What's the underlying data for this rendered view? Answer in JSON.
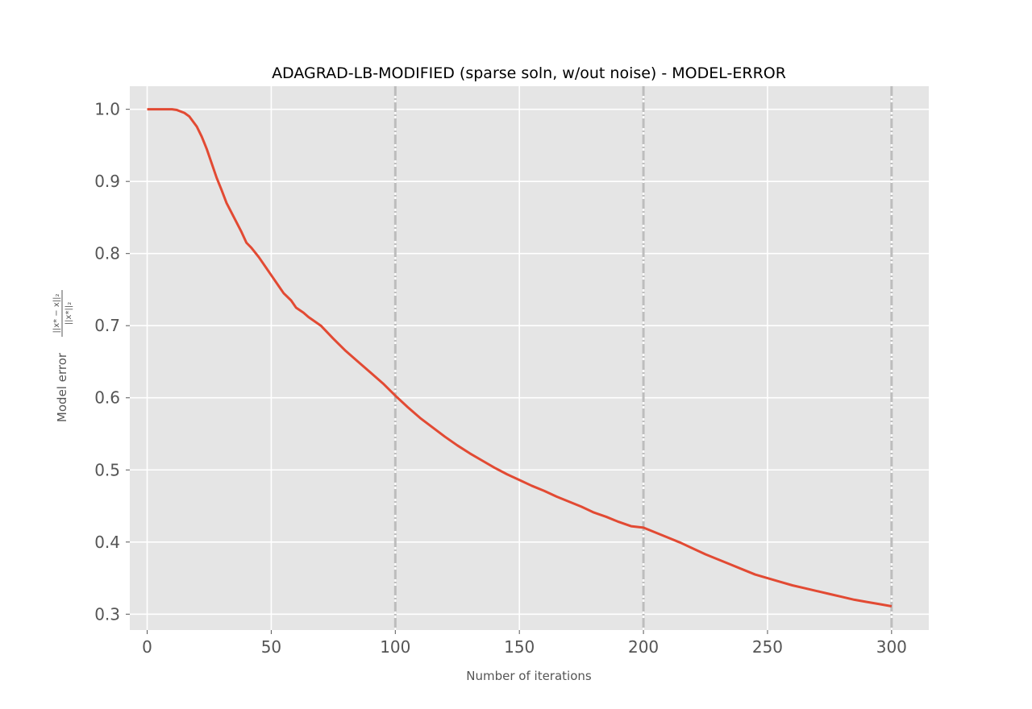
{
  "chart_data": {
    "type": "line",
    "title": "ADAGRAD-LB-MODIFIED (sparse soln, w/out noise) - MODEL-ERROR",
    "xlabel": "Number of iterations",
    "ylabel_prefix": "Model error",
    "ylabel_fraction": {
      "numerator": "||x* − x||₂",
      "denominator": "||x*||₂"
    },
    "xlim": [
      -7,
      315
    ],
    "ylim": [
      0.278,
      1.032
    ],
    "xticks": [
      0,
      50,
      100,
      150,
      200,
      250,
      300
    ],
    "yticks": [
      0.3,
      0.4,
      0.5,
      0.6,
      0.7,
      0.8,
      0.9,
      1.0
    ],
    "xtick_labels": [
      "0",
      "50",
      "100",
      "150",
      "200",
      "250",
      "300"
    ],
    "ytick_labels": [
      "0.3",
      "0.4",
      "0.5",
      "0.6",
      "0.7",
      "0.8",
      "0.9",
      "1.0"
    ],
    "grid": true,
    "vlines": [
      100,
      200,
      300
    ],
    "series_color": "#E24A33",
    "vline_color": "#BDBDBD",
    "background_color": "#E5E5E5",
    "series": [
      {
        "x": [
          0,
          5,
          10,
          12,
          15,
          17,
          20,
          22,
          24,
          26,
          28,
          30,
          32,
          35,
          38,
          40,
          42,
          45,
          48,
          50,
          53,
          55,
          58,
          60,
          63,
          65,
          70,
          75,
          80,
          85,
          90,
          95,
          100,
          105,
          110,
          115,
          120,
          125,
          130,
          135,
          140,
          145,
          150,
          155,
          160,
          165,
          170,
          175,
          180,
          185,
          190,
          195,
          200,
          205,
          210,
          215,
          220,
          225,
          230,
          235,
          240,
          245,
          250,
          255,
          260,
          265,
          270,
          275,
          280,
          285,
          290,
          295,
          300
        ],
        "y": [
          1.0,
          1.0,
          1.0,
          0.999,
          0.995,
          0.99,
          0.976,
          0.962,
          0.945,
          0.925,
          0.905,
          0.888,
          0.87,
          0.85,
          0.83,
          0.815,
          0.808,
          0.795,
          0.78,
          0.77,
          0.755,
          0.745,
          0.735,
          0.725,
          0.718,
          0.712,
          0.7,
          0.682,
          0.665,
          0.65,
          0.635,
          0.62,
          0.603,
          0.587,
          0.572,
          0.559,
          0.546,
          0.534,
          0.523,
          0.513,
          0.503,
          0.494,
          0.486,
          0.478,
          0.471,
          0.463,
          0.456,
          0.449,
          0.441,
          0.435,
          0.428,
          0.422,
          0.42,
          0.413,
          0.406,
          0.399,
          0.391,
          0.383,
          0.376,
          0.369,
          0.362,
          0.355,
          0.35,
          0.345,
          0.34,
          0.336,
          0.332,
          0.328,
          0.324,
          0.32,
          0.317,
          0.314,
          0.311
        ]
      }
    ]
  }
}
